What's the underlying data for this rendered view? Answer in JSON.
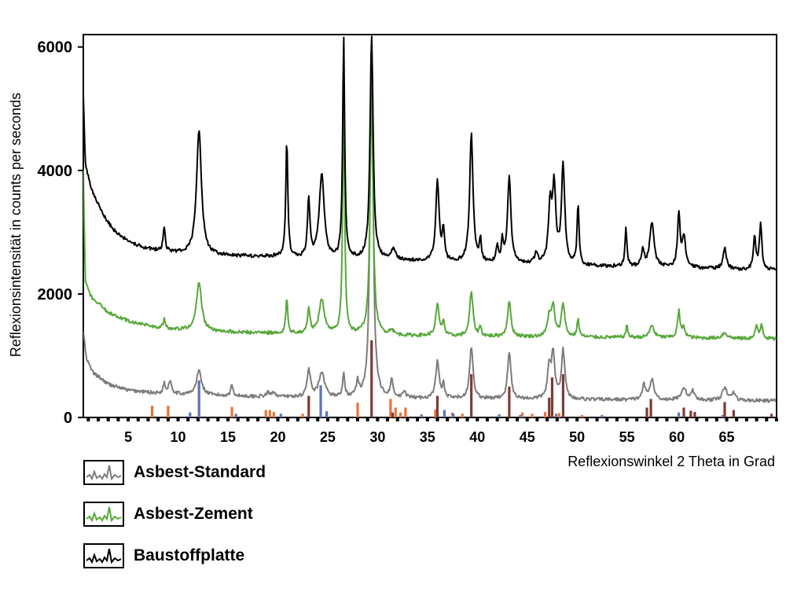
{
  "chart_data": {
    "type": "line",
    "xlabel": "Reflexionswinkel 2 Theta in Grad",
    "ylabel": "Reflexionsintensität in counts per seconds",
    "xlim": [
      0.5,
      70
    ],
    "ylim": [
      0,
      6200
    ],
    "x_ticks": [
      5,
      10,
      15,
      20,
      25,
      30,
      35,
      40,
      45,
      50,
      55,
      60,
      65
    ],
    "y_ticks": [
      0,
      2000,
      4000,
      6000
    ],
    "y_tick_labels": [
      "0",
      "2000",
      "4000",
      "6000"
    ],
    "series": [
      {
        "name": "Asbest-Standard",
        "color": "#7f7b7a",
        "baseline": [
          [
            0.5,
            1400
          ],
          [
            0.8,
            950
          ],
          [
            1.5,
            720
          ],
          [
            3,
            540
          ],
          [
            5,
            440
          ],
          [
            8,
            390
          ],
          [
            12,
            360
          ],
          [
            20,
            330
          ],
          [
            30,
            310
          ],
          [
            40,
            300
          ],
          [
            50,
            290
          ],
          [
            60,
            280
          ],
          [
            70,
            270
          ]
        ],
        "peaks": [
          [
            8.6,
            160,
            0.12
          ],
          [
            9.2,
            210,
            0.2
          ],
          [
            12.1,
            400,
            0.3
          ],
          [
            15.4,
            170,
            0.15
          ],
          [
            19.0,
            60,
            0.2
          ],
          [
            19.6,
            80,
            0.2
          ],
          [
            23.1,
            450,
            0.2
          ],
          [
            24.4,
            380,
            0.35
          ],
          [
            26.6,
            380,
            0.12
          ],
          [
            28.0,
            230,
            0.15
          ],
          [
            29.4,
            5700,
            0.18
          ],
          [
            31.4,
            280,
            0.15
          ],
          [
            32.7,
            110,
            0.15
          ],
          [
            36.0,
            600,
            0.2
          ],
          [
            36.6,
            220,
            0.12
          ],
          [
            39.4,
            840,
            0.2
          ],
          [
            43.2,
            750,
            0.2
          ],
          [
            47.2,
            480,
            0.2
          ],
          [
            47.6,
            700,
            0.2
          ],
          [
            48.6,
            780,
            0.2
          ],
          [
            56.7,
            230,
            0.2
          ],
          [
            57.5,
            320,
            0.25
          ],
          [
            60.7,
            200,
            0.3
          ],
          [
            61.6,
            140,
            0.2
          ],
          [
            64.8,
            190,
            0.3
          ],
          [
            65.7,
            120,
            0.2
          ]
        ]
      },
      {
        "name": "Asbest-Zement",
        "color": "#57a83a",
        "baseline": [
          [
            0.5,
            4000
          ],
          [
            0.7,
            2200
          ],
          [
            1.3,
            1950
          ],
          [
            3,
            1700
          ],
          [
            5,
            1560
          ],
          [
            8,
            1450
          ],
          [
            12,
            1400
          ],
          [
            20,
            1360
          ],
          [
            30,
            1330
          ],
          [
            40,
            1310
          ],
          [
            50,
            1300
          ],
          [
            60,
            1290
          ],
          [
            70,
            1270
          ]
        ],
        "peaks": [
          [
            8.6,
            150,
            0.12
          ],
          [
            12.1,
            800,
            0.3
          ],
          [
            20.9,
            550,
            0.12
          ],
          [
            23.1,
            410,
            0.15
          ],
          [
            24.4,
            570,
            0.3
          ],
          [
            26.6,
            3800,
            0.12
          ],
          [
            29.4,
            3850,
            0.18
          ],
          [
            31.4,
            90,
            0.2
          ],
          [
            36.0,
            500,
            0.2
          ],
          [
            36.6,
            240,
            0.12
          ],
          [
            39.4,
            720,
            0.2
          ],
          [
            40.3,
            150,
            0.12
          ],
          [
            43.2,
            570,
            0.2
          ],
          [
            47.2,
            320,
            0.2
          ],
          [
            47.6,
            480,
            0.2
          ],
          [
            48.6,
            540,
            0.2
          ],
          [
            50.1,
            290,
            0.12
          ],
          [
            55.0,
            180,
            0.12
          ],
          [
            57.5,
            200,
            0.25
          ],
          [
            60.2,
            420,
            0.15
          ],
          [
            60.7,
            150,
            0.2
          ],
          [
            64.8,
            90,
            0.3
          ],
          [
            68.0,
            200,
            0.15
          ],
          [
            68.5,
            230,
            0.15
          ]
        ]
      },
      {
        "name": "Baustoffplatte",
        "color": "#000000",
        "baseline": [
          [
            0.5,
            5200
          ],
          [
            0.7,
            4100
          ],
          [
            1.3,
            3700
          ],
          [
            2.5,
            3280
          ],
          [
            3.5,
            3040
          ],
          [
            5,
            2850
          ],
          [
            6.5,
            2750
          ],
          [
            8,
            2700
          ],
          [
            12,
            2620
          ],
          [
            20,
            2600
          ],
          [
            24,
            2550
          ],
          [
            30,
            2550
          ],
          [
            40,
            2500
          ],
          [
            50,
            2450
          ],
          [
            60,
            2430
          ],
          [
            65,
            2400
          ],
          [
            70,
            2380
          ]
        ],
        "peaks": [
          [
            8.6,
            410,
            0.12
          ],
          [
            12.1,
            2020,
            0.3
          ],
          [
            20.9,
            1900,
            0.12
          ],
          [
            23.1,
            950,
            0.15
          ],
          [
            24.4,
            1360,
            0.3
          ],
          [
            26.6,
            3600,
            0.12
          ],
          [
            29.4,
            3600,
            0.18
          ],
          [
            31.6,
            200,
            0.2
          ],
          [
            36.0,
            1300,
            0.2
          ],
          [
            36.6,
            500,
            0.12
          ],
          [
            39.4,
            2080,
            0.2
          ],
          [
            40.3,
            350,
            0.12
          ],
          [
            42.0,
            280,
            0.12
          ],
          [
            42.5,
            330,
            0.12
          ],
          [
            43.2,
            1400,
            0.2
          ],
          [
            45.9,
            160,
            0.2
          ],
          [
            47.3,
            900,
            0.2
          ],
          [
            47.7,
            1200,
            0.2
          ],
          [
            48.6,
            1590,
            0.2
          ],
          [
            50.1,
            980,
            0.12
          ],
          [
            54.9,
            620,
            0.12
          ],
          [
            56.6,
            270,
            0.15
          ],
          [
            57.5,
            720,
            0.25
          ],
          [
            60.2,
            850,
            0.15
          ],
          [
            60.7,
            480,
            0.2
          ],
          [
            64.8,
            340,
            0.2
          ],
          [
            67.8,
            530,
            0.15
          ],
          [
            68.4,
            720,
            0.15
          ]
        ]
      }
    ],
    "reference_bars": [
      {
        "color": "#e8743b",
        "bars": [
          [
            7.4,
            190
          ],
          [
            9.0,
            190
          ],
          [
            15.4,
            170
          ],
          [
            18.8,
            120
          ],
          [
            19.2,
            120
          ],
          [
            19.6,
            90
          ],
          [
            22.5,
            60
          ],
          [
            28.0,
            240
          ],
          [
            31.3,
            300
          ],
          [
            31.8,
            160
          ],
          [
            32.3,
            80
          ],
          [
            32.8,
            160
          ],
          [
            35.8,
            130
          ],
          [
            37.5,
            80
          ],
          [
            38.5,
            60
          ],
          [
            44.5,
            80
          ],
          [
            45.5,
            60
          ],
          [
            46.8,
            90
          ],
          [
            48.2,
            70
          ],
          [
            50.5,
            40
          ]
        ]
      },
      {
        "color": "#5b73b8",
        "bars": [
          [
            11.2,
            80
          ],
          [
            12.1,
            600
          ],
          [
            15.8,
            60
          ],
          [
            20.3,
            60
          ],
          [
            24.3,
            520
          ],
          [
            24.9,
            100
          ],
          [
            34.4,
            50
          ],
          [
            36.7,
            120
          ],
          [
            37.6,
            60
          ],
          [
            42.2,
            50
          ],
          [
            44.3,
            40
          ],
          [
            47.9,
            60
          ],
          [
            52.5,
            40
          ],
          [
            60.2,
            80
          ],
          [
            64.6,
            40
          ]
        ]
      },
      {
        "color": "#7e3b33",
        "bars": [
          [
            23.1,
            350
          ],
          [
            29.4,
            1250
          ],
          [
            31.5,
            80
          ],
          [
            36.0,
            350
          ],
          [
            39.4,
            700
          ],
          [
            43.2,
            500
          ],
          [
            47.2,
            320
          ],
          [
            47.5,
            650
          ],
          [
            48.6,
            700
          ],
          [
            57.0,
            160
          ],
          [
            57.4,
            300
          ],
          [
            60.7,
            160
          ],
          [
            61.4,
            110
          ],
          [
            61.8,
            90
          ],
          [
            64.8,
            250
          ],
          [
            65.7,
            120
          ],
          [
            69.5,
            60
          ]
        ]
      }
    ]
  },
  "legend": {
    "items": [
      {
        "label": "Asbest-Standard",
        "color": "#7f7b7a"
      },
      {
        "label": "Asbest-Zement",
        "color": "#57a83a"
      },
      {
        "label": "Baustoffplatte",
        "color": "#000000"
      }
    ]
  }
}
